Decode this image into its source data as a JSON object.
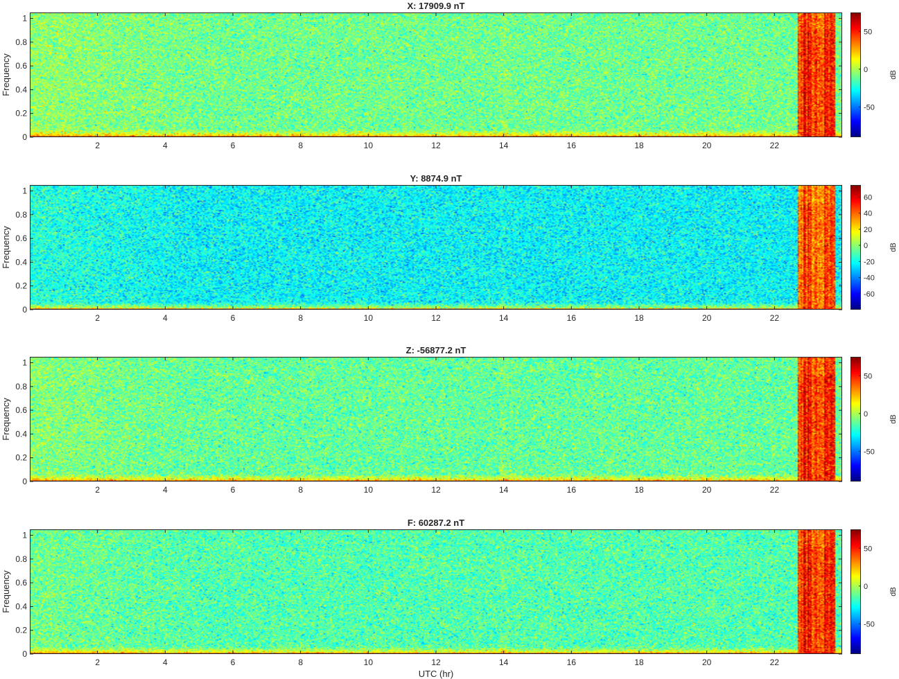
{
  "chart_data": [
    {
      "type": "heatmap",
      "title": "X: 17909.9 nT",
      "ylabel": "Frequency",
      "xlabel": "",
      "xlim": [
        0,
        24
      ],
      "ylim": [
        0,
        1.05
      ],
      "xticks": [
        2,
        4,
        6,
        8,
        10,
        12,
        14,
        16,
        18,
        20,
        22
      ],
      "xtick_labels": [
        "2",
        "4",
        "6",
        "8",
        "10",
        "12",
        "14",
        "16",
        "18",
        "20",
        "22"
      ],
      "yticks": [
        0,
        0.2,
        0.4,
        0.6,
        0.8,
        1
      ],
      "ytick_labels": [
        "0",
        "0.2",
        "0.4",
        "0.6",
        "0.8",
        "1"
      ],
      "colorbar": {
        "label": "dB",
        "clim": [
          -90,
          75
        ],
        "ticks": [
          -50,
          0,
          50
        ],
        "tick_labels": [
          "-50",
          "0",
          "50"
        ]
      },
      "colormap": "jet",
      "background_level_db": -10,
      "low_frequency_band_db": 60,
      "disturbance_interval_hr": [
        22.7,
        23.8
      ],
      "disturbance_level_db": 50
    },
    {
      "type": "heatmap",
      "title": "Y: 8874.9 nT",
      "ylabel": "Frequency",
      "xlabel": "",
      "xlim": [
        0,
        24
      ],
      "ylim": [
        0,
        1.05
      ],
      "xticks": [
        2,
        4,
        6,
        8,
        10,
        12,
        14,
        16,
        18,
        20,
        22
      ],
      "xtick_labels": [
        "2",
        "4",
        "6",
        "8",
        "10",
        "12",
        "14",
        "16",
        "18",
        "20",
        "22"
      ],
      "yticks": [
        0,
        0.2,
        0.4,
        0.6,
        0.8,
        1
      ],
      "ytick_labels": [
        "0",
        "0.2",
        "0.4",
        "0.6",
        "0.8",
        "1"
      ],
      "colorbar": {
        "label": "dB",
        "clim": [
          -80,
          75
        ],
        "ticks": [
          -60,
          -40,
          -20,
          0,
          20,
          40,
          60
        ],
        "tick_labels": [
          "-60",
          "-40",
          "-20",
          "0",
          "20",
          "40",
          "60"
        ]
      },
      "colormap": "jet",
      "background_level_db": -22,
      "low_frequency_band_db": 60,
      "disturbance_interval_hr": [
        22.7,
        23.8
      ],
      "disturbance_level_db": 45
    },
    {
      "type": "heatmap",
      "title": "Z: -56877.2 nT",
      "ylabel": "Frequency",
      "xlabel": "",
      "xlim": [
        0,
        24
      ],
      "ylim": [
        0,
        1.05
      ],
      "xticks": [
        2,
        4,
        6,
        8,
        10,
        12,
        14,
        16,
        18,
        20,
        22
      ],
      "xtick_labels": [
        "2",
        "4",
        "6",
        "8",
        "10",
        "12",
        "14",
        "16",
        "18",
        "20",
        "22"
      ],
      "yticks": [
        0,
        0.2,
        0.4,
        0.6,
        0.8,
        1
      ],
      "ytick_labels": [
        "0",
        "0.2",
        "0.4",
        "0.6",
        "0.8",
        "1"
      ],
      "colorbar": {
        "label": "dB",
        "clim": [
          -90,
          75
        ],
        "ticks": [
          -50,
          0,
          50
        ],
        "tick_labels": [
          "-50",
          "0",
          "50"
        ]
      },
      "colormap": "jet",
      "background_level_db": -12,
      "low_frequency_band_db": 60,
      "disturbance_interval_hr": [
        22.7,
        23.8
      ],
      "disturbance_level_db": 50
    },
    {
      "type": "heatmap",
      "title": "F: 60287.2 nT",
      "ylabel": "Frequency",
      "xlabel": "UTC (hr)",
      "xlim": [
        0,
        24
      ],
      "ylim": [
        0,
        1.05
      ],
      "xticks": [
        2,
        4,
        6,
        8,
        10,
        12,
        14,
        16,
        18,
        20,
        22
      ],
      "xtick_labels": [
        "2",
        "4",
        "6",
        "8",
        "10",
        "12",
        "14",
        "16",
        "18",
        "20",
        "22"
      ],
      "yticks": [
        0,
        0.2,
        0.4,
        0.6,
        0.8,
        1
      ],
      "ytick_labels": [
        "0",
        "0.2",
        "0.4",
        "0.6",
        "0.8",
        "1"
      ],
      "colorbar": {
        "label": "dB",
        "clim": [
          -90,
          75
        ],
        "ticks": [
          -50,
          0,
          50
        ],
        "tick_labels": [
          "-50",
          "0",
          "50"
        ]
      },
      "colormap": "jet",
      "background_level_db": -15,
      "low_frequency_band_db": 60,
      "disturbance_interval_hr": [
        22.7,
        23.8
      ],
      "disturbance_level_db": 50
    }
  ]
}
